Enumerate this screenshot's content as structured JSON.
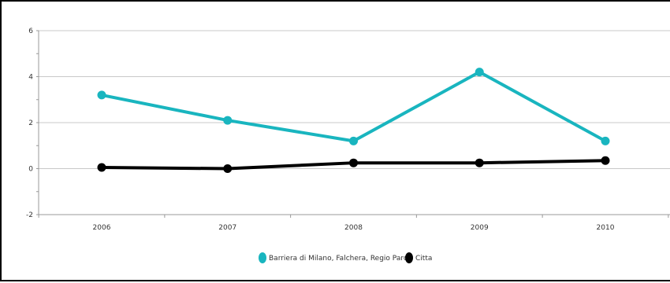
{
  "chart_data": {
    "type": "line",
    "title": "",
    "xlabel": "",
    "ylabel": "",
    "categories": [
      "2006",
      "2007",
      "2008",
      "2009",
      "2010"
    ],
    "ylim": [
      -2,
      6
    ],
    "yticks": [
      -2,
      0,
      2,
      4,
      6
    ],
    "grid": true,
    "legend_position": "bottom-center",
    "series": [
      {
        "name": "Barriera di Milano, Falchera, Regio Parco",
        "color": "#19b5bf",
        "values": [
          3.2,
          2.1,
          1.2,
          4.2,
          1.2
        ]
      },
      {
        "name": "Citta",
        "color": "#000000",
        "values": [
          0.05,
          0.0,
          0.25,
          0.25,
          0.35
        ]
      }
    ]
  }
}
